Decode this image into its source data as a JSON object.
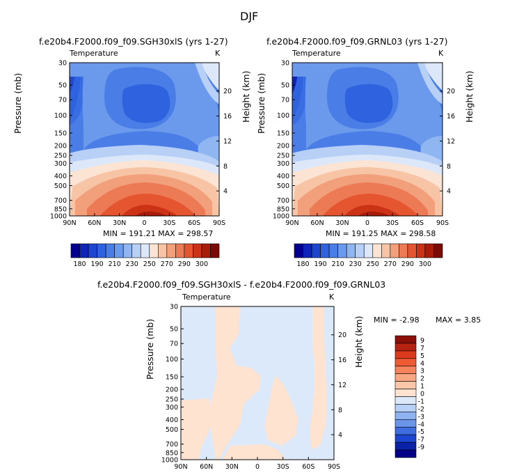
{
  "title": "DJF",
  "panels": [
    {
      "id": "p1",
      "title": "f.e20b4.F2000.f09_f09.SGH30xlS (yrs 1-27)",
      "corner_left": "Temperature",
      "corner_right": "K",
      "y_label": "Pressure (mb)",
      "y2_label": "Height (km)",
      "stats": "MIN = 191.21   MAX = 298.57"
    },
    {
      "id": "p2",
      "title": "f.e20b4.F2000.f09_f09.GRNL03 (yrs 1-27)",
      "corner_left": "Temperature",
      "corner_right": "K",
      "y_label": "Pressure (mb)",
      "y2_label": "Height (km)",
      "stats": "MIN = 191.25   MAX = 298.58"
    },
    {
      "id": "p3",
      "title": "f.e20b4.F2000.f09_f09.SGH30xlS - f.e20b4.F2000.f09_f09.GRNL03",
      "corner_left": "Temperature",
      "corner_right": "K",
      "y_label": "Pressure (mb)",
      "y2_label": "Height (km)",
      "stats_min": "MIN =   -2.98",
      "stats_max": "MAX =    3.85"
    }
  ],
  "colorbar_abs": {
    "labels": [
      "180",
      "190",
      "210",
      "230",
      "250",
      "270",
      "290",
      "300"
    ],
    "colors": [
      "#03008f",
      "#0f24b8",
      "#1c45d0",
      "#2f62de",
      "#4a7ee6",
      "#6b9aed",
      "#90b6f2",
      "#b8d0f6",
      "#dce8fa",
      "#fbe4d3",
      "#f7c4a6",
      "#f2a07c",
      "#ec7a55",
      "#e45530",
      "#cc3316",
      "#a91c0a",
      "#7a0a05"
    ]
  },
  "colorbar_diff": {
    "labels": [
      "9",
      "7",
      "5",
      "4",
      "3",
      "2",
      "1",
      "0",
      "-1",
      "-2",
      "-3",
      "-4",
      "-5",
      "-7",
      "-9"
    ],
    "colors": [
      "#8a0f08",
      "#b52311",
      "#dc3a1c",
      "#ee5a32",
      "#f5835b",
      "#f8a782",
      "#fbc7a8",
      "#fde3d0",
      "#dce9fa",
      "#b8d0f6",
      "#8fb2f1",
      "#6a95ea",
      "#3e6de0",
      "#1c45d0",
      "#0a22a8",
      "#030087"
    ]
  },
  "chart_data": [
    {
      "type": "heatmap",
      "title": "f.e20b4.F2000.f09_f09.SGH30xlS (yrs 1-27)",
      "xlabel": "",
      "ylabel": "Pressure (mb)",
      "y2label": "Height (km)",
      "x_ticks": [
        "90N",
        "60N",
        "30N",
        "0",
        "30S",
        "60S",
        "90S"
      ],
      "y_ticks": [
        "30",
        "50",
        "70",
        "100",
        "150",
        "200",
        "250",
        "300",
        "400",
        "500",
        "700",
        "850",
        "1000"
      ],
      "y2_ticks": [
        "20",
        "16",
        "12",
        "8",
        "4"
      ],
      "y_scale": "log",
      "levels": [
        180,
        190,
        200,
        210,
        220,
        230,
        240,
        250,
        260,
        270,
        280,
        290,
        300
      ],
      "units": "K",
      "min": 191.21,
      "max": 298.57
    },
    {
      "type": "heatmap",
      "title": "f.e20b4.F2000.f09_f09.GRNL03 (yrs 1-27)",
      "xlabel": "",
      "ylabel": "Pressure (mb)",
      "y2label": "Height (km)",
      "x_ticks": [
        "90N",
        "60N",
        "30N",
        "0",
        "30S",
        "60S",
        "90S"
      ],
      "y_ticks": [
        "30",
        "50",
        "70",
        "100",
        "150",
        "200",
        "250",
        "300",
        "400",
        "500",
        "700",
        "850",
        "1000"
      ],
      "y2_ticks": [
        "20",
        "16",
        "12",
        "8",
        "4"
      ],
      "y_scale": "log",
      "levels": [
        180,
        190,
        200,
        210,
        220,
        230,
        240,
        250,
        260,
        270,
        280,
        290,
        300
      ],
      "units": "K",
      "min": 191.25,
      "max": 298.58
    },
    {
      "type": "heatmap",
      "title": "f.e20b4.F2000.f09_f09.SGH30xlS - f.e20b4.F2000.f09_f09.GRNL03",
      "xlabel": "",
      "ylabel": "Pressure (mb)",
      "y2label": "Height (km)",
      "x_ticks": [
        "90N",
        "60N",
        "30N",
        "0",
        "30S",
        "60S",
        "90S"
      ],
      "y_ticks": [
        "30",
        "50",
        "70",
        "100",
        "150",
        "200",
        "250",
        "300",
        "400",
        "500",
        "700",
        "850",
        "1000"
      ],
      "y2_ticks": [
        "20",
        "16",
        "12",
        "8",
        "4"
      ],
      "y_scale": "log",
      "levels": [
        -9,
        -7,
        -5,
        -4,
        -3,
        -2,
        -1,
        0,
        1,
        2,
        3,
        4,
        5,
        7,
        9
      ],
      "units": "K",
      "min": -2.98,
      "max": 3.85
    }
  ]
}
